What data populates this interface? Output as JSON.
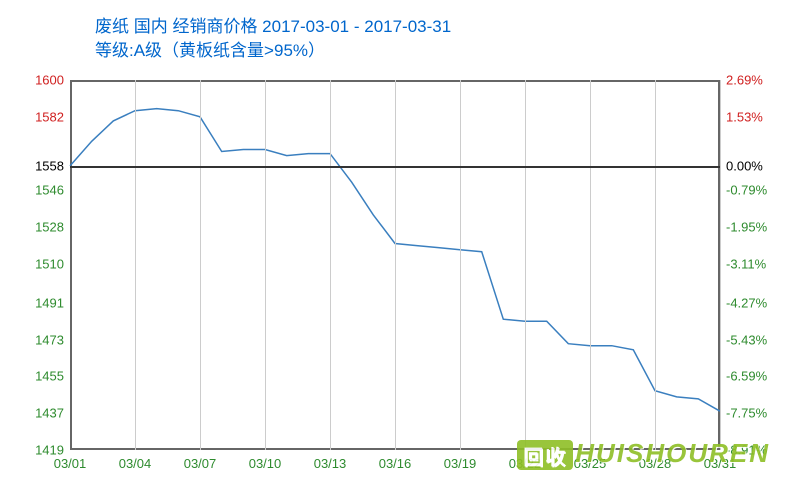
{
  "title": "废纸 国内 经销商价格 2017-03-01 - 2017-03-31",
  "subtitle": "等级:A级（黄板纸含量>95%）",
  "chart": {
    "type": "line",
    "line_color": "#3a7fbf",
    "line_width": 1.5,
    "border_color": "#666666",
    "grid_color": "#cccccc",
    "baseline_color": "#333333",
    "background_color": "#ffffff",
    "label_fontsize": 13,
    "title_fontsize": 17,
    "title_color": "#0066cc",
    "baseline_value": 1558,
    "ylim": [
      1419,
      1600
    ],
    "y_left_ticks": [
      {
        "v": 1600,
        "label": "1600",
        "color": "#d02020"
      },
      {
        "v": 1582,
        "label": "1582",
        "color": "#d02020"
      },
      {
        "v": 1558,
        "label": "1558",
        "color": "#000000"
      },
      {
        "v": 1546,
        "label": "1546",
        "color": "#2e8b2e"
      },
      {
        "v": 1528,
        "label": "1528",
        "color": "#2e8b2e"
      },
      {
        "v": 1510,
        "label": "1510",
        "color": "#2e8b2e"
      },
      {
        "v": 1491,
        "label": "1491",
        "color": "#2e8b2e"
      },
      {
        "v": 1473,
        "label": "1473",
        "color": "#2e8b2e"
      },
      {
        "v": 1455,
        "label": "1455",
        "color": "#2e8b2e"
      },
      {
        "v": 1437,
        "label": "1437",
        "color": "#2e8b2e"
      },
      {
        "v": 1419,
        "label": "1419",
        "color": "#2e8b2e"
      }
    ],
    "y_right_ticks": [
      {
        "v": 1600,
        "label": "2.69%",
        "color": "#d02020"
      },
      {
        "v": 1582,
        "label": "1.53%",
        "color": "#d02020"
      },
      {
        "v": 1558,
        "label": "0.00%",
        "color": "#000000"
      },
      {
        "v": 1546,
        "label": "-0.79%",
        "color": "#2e8b2e"
      },
      {
        "v": 1528,
        "label": "-1.95%",
        "color": "#2e8b2e"
      },
      {
        "v": 1510,
        "label": "-3.11%",
        "color": "#2e8b2e"
      },
      {
        "v": 1491,
        "label": "-4.27%",
        "color": "#2e8b2e"
      },
      {
        "v": 1473,
        "label": "-5.43%",
        "color": "#2e8b2e"
      },
      {
        "v": 1455,
        "label": "-6.59%",
        "color": "#2e8b2e"
      },
      {
        "v": 1437,
        "label": "-7.75%",
        "color": "#2e8b2e"
      },
      {
        "v": 1419,
        "label": "-8.91%",
        "color": "#2e8b2e"
      }
    ],
    "x_ticks": [
      "03/01",
      "03/04",
      "03/07",
      "03/10",
      "03/13",
      "03/16",
      "03/19",
      "03/22",
      "03/25",
      "03/28",
      "03/31"
    ],
    "x_index_range": [
      1,
      31
    ],
    "x_tick_positions": [
      1,
      4,
      7,
      10,
      13,
      16,
      19,
      22,
      25,
      28,
      31
    ],
    "series": [
      1558,
      1570,
      1580,
      1585,
      1586,
      1585,
      1582,
      1565,
      1566,
      1566,
      1563,
      1564,
      1564,
      1550,
      1534,
      1520,
      1519,
      1518,
      1517,
      1516,
      1483,
      1482,
      1482,
      1471,
      1470,
      1470,
      1468,
      1448,
      1445,
      1444,
      1438
    ]
  },
  "watermark": {
    "stamp": "回收",
    "text": "HUISHOUREN",
    "text_color": "#8fbf26",
    "stamp_bg": "#8fbf26",
    "stamp_fg": "#ffffff"
  }
}
